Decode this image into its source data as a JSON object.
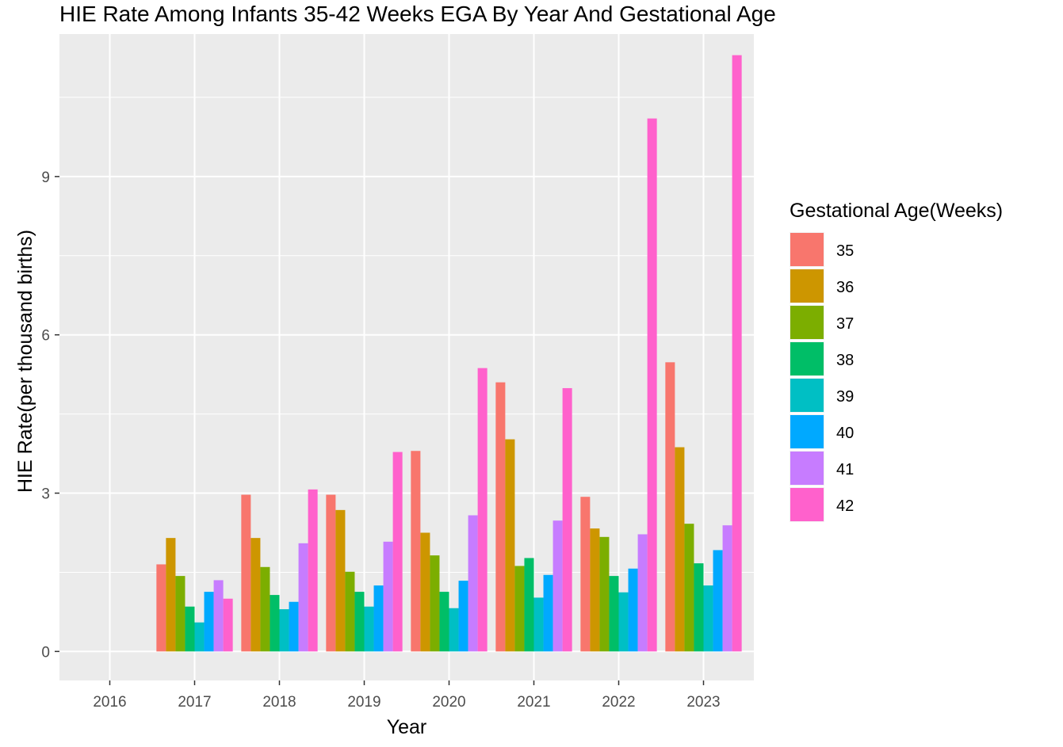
{
  "chart_data": {
    "type": "bar",
    "title": "HIE Rate Among Infants 35-42 Weeks EGA By Year And Gestational Age",
    "xlabel": "Year",
    "ylabel": "HIE Rate(per thousand births)",
    "categories": [
      "2016",
      "2017",
      "2018",
      "2019",
      "2020",
      "2021",
      "2022",
      "2023"
    ],
    "ylim": [
      -0.55,
      11.7
    ],
    "yticks": [
      0,
      3,
      6,
      9
    ],
    "grid": true,
    "legend": {
      "title": "Gestational Age(Weeks)",
      "position": "right"
    },
    "series": [
      {
        "name": "35",
        "color": "#F8766D",
        "values": [
          null,
          1.65,
          2.97,
          2.97,
          3.8,
          5.1,
          2.93,
          5.48
        ]
      },
      {
        "name": "36",
        "color": "#CD9600",
        "values": [
          null,
          2.15,
          2.15,
          2.68,
          2.25,
          4.02,
          2.33,
          3.87
        ]
      },
      {
        "name": "37",
        "color": "#7CAE00",
        "values": [
          null,
          1.43,
          1.6,
          1.51,
          1.82,
          1.62,
          2.17,
          2.42
        ]
      },
      {
        "name": "38",
        "color": "#00BE67",
        "values": [
          null,
          0.85,
          1.07,
          1.13,
          1.13,
          1.77,
          1.43,
          1.67
        ]
      },
      {
        "name": "39",
        "color": "#00BFC4",
        "values": [
          null,
          0.55,
          0.8,
          0.85,
          0.82,
          1.02,
          1.12,
          1.25
        ]
      },
      {
        "name": "40",
        "color": "#00A9FF",
        "values": [
          null,
          1.13,
          0.94,
          1.25,
          1.34,
          1.45,
          1.57,
          1.92
        ]
      },
      {
        "name": "41",
        "color": "#C77CFF",
        "values": [
          null,
          1.35,
          2.05,
          2.08,
          2.58,
          2.48,
          2.22,
          2.39
        ]
      },
      {
        "name": "42",
        "color": "#FF61CC",
        "values": [
          null,
          1.0,
          3.07,
          3.78,
          5.37,
          4.99,
          10.1,
          11.3
        ]
      }
    ]
  }
}
